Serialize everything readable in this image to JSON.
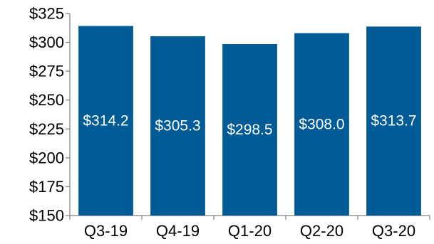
{
  "chart_data": {
    "type": "bar",
    "categories": [
      "Q3-19",
      "Q4-19",
      "Q1-20",
      "Q2-20",
      "Q3-20"
    ],
    "values": [
      314.2,
      305.3,
      298.5,
      308.0,
      313.7
    ],
    "data_labels": [
      "$314.2",
      "$305.3",
      "$298.5",
      "$308.0",
      "$313.7"
    ],
    "title": "",
    "xlabel": "",
    "ylabel": "",
    "ylim": [
      150,
      325
    ],
    "yticks": [
      150,
      175,
      200,
      225,
      250,
      275,
      300,
      325
    ],
    "ytick_labels": [
      "$150",
      "$175",
      "$200",
      "$225",
      "$250",
      "$275",
      "$300",
      "$325"
    ],
    "grid": false,
    "legend": "none",
    "bar_color": "#005b96",
    "axis_color": "#808080",
    "label_color": "#ffffff"
  }
}
